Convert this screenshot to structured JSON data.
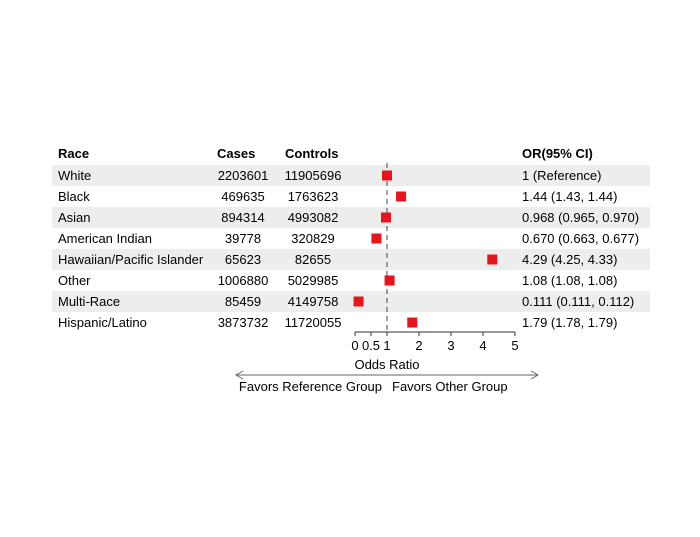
{
  "chart_data": {
    "type": "forest",
    "columns": {
      "race": "Race",
      "cases": "Cases",
      "controls": "Controls",
      "or_ci": "OR(95% CI)"
    },
    "rows": [
      {
        "race": "White",
        "cases": "2203601",
        "controls": "11905696",
        "or": 1.0,
        "or_ci": "1 (Reference)"
      },
      {
        "race": "Black",
        "cases": "469635",
        "controls": "1763623",
        "or": 1.44,
        "or_ci": "1.44 (1.43, 1.44)"
      },
      {
        "race": "Asian",
        "cases": "894314",
        "controls": "4993082",
        "or": 0.968,
        "or_ci": "0.968 (0.965, 0.970)"
      },
      {
        "race": "American Indian",
        "cases": "39778",
        "controls": "320829",
        "or": 0.67,
        "or_ci": "0.670 (0.663, 0.677)"
      },
      {
        "race": "Hawaiian/Pacific Islander",
        "cases": "65623",
        "controls": "82655",
        "or": 4.29,
        "or_ci": "4.29 (4.25, 4.33)"
      },
      {
        "race": "Other",
        "cases": "1006880",
        "controls": "5029985",
        "or": 1.08,
        "or_ci": "1.08 (1.08, 1.08)"
      },
      {
        "race": "Multi-Race",
        "cases": "85459",
        "controls": "4149758",
        "or": 0.111,
        "or_ci": "0.111 (0.111, 0.112)"
      },
      {
        "race": "Hispanic/Latino",
        "cases": "3873732",
        "controls": "11720055",
        "or": 1.79,
        "or_ci": "1.79 (1.78, 1.79)"
      }
    ],
    "x_axis": {
      "label": "Odds Ratio",
      "range": [
        0,
        5
      ],
      "ticks": [
        0,
        0.5,
        1,
        2,
        3,
        4,
        5
      ],
      "tick_labels": [
        "0",
        "0.5",
        "1",
        "2",
        "3",
        "4",
        "5"
      ],
      "reference_line": 1
    },
    "direction_labels": {
      "left": "Favors Reference Group",
      "right": "Favors Other Group"
    },
    "colors": {
      "marker": "#e8141b",
      "stripe": "#eceeed",
      "reference_line": "#444444",
      "text": "#000000"
    }
  }
}
